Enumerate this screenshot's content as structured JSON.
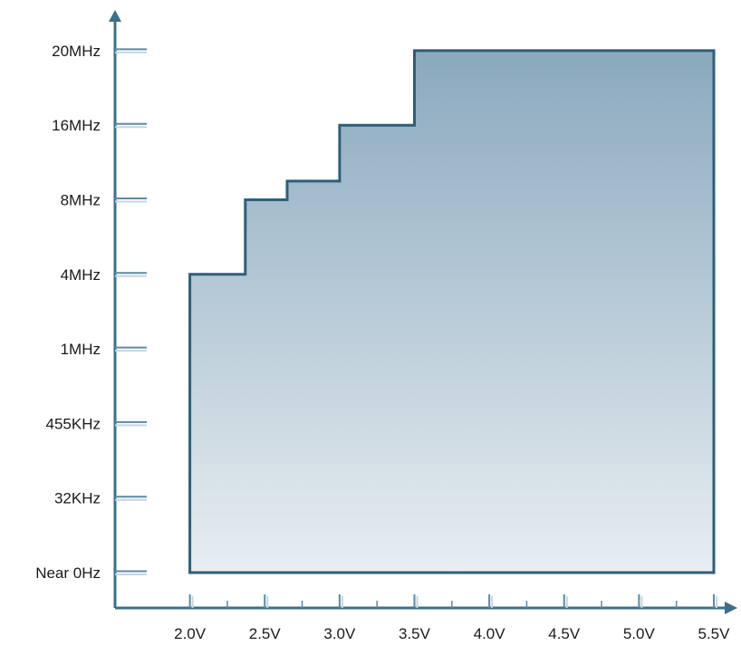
{
  "chart_data": {
    "type": "area",
    "title": "",
    "xlabel": "",
    "ylabel": "",
    "x_ticks": [
      "2.0V",
      "2.5V",
      "3.0V",
      "3.5V",
      "4.0V",
      "4.5V",
      "5.0V",
      "5.5V"
    ],
    "y_ticks": [
      "Near 0Hz",
      "32KHz",
      "455KHz",
      "1MHz",
      "4MHz",
      "8MHz",
      "16MHz",
      "20MHz"
    ],
    "x_scale": "linear",
    "y_scale": "categorical",
    "xlim": [
      1.5,
      5.5
    ],
    "grid": false,
    "legend": "none",
    "colors": {
      "fill_top": "#8aa9be",
      "fill_bottom": "#e8eef2",
      "outline": "#2e5f7a",
      "axis": "#3d6e8a",
      "tick": "#5b8aa6"
    },
    "series": [
      {
        "step_outline": [
          {
            "v": 2.0,
            "f": 0.0
          },
          {
            "v": 2.0,
            "f": 4.0
          },
          {
            "v": 2.37,
            "f": 4.0
          },
          {
            "v": 2.37,
            "f": 5.0
          },
          {
            "v": 2.65,
            "f": 5.0
          },
          {
            "v": 2.65,
            "f": 5.25
          },
          {
            "v": 3.0,
            "f": 5.25
          },
          {
            "v": 3.0,
            "f": 6.0
          },
          {
            "v": 3.5,
            "f": 6.0
          },
          {
            "v": 3.5,
            "f": 7.0
          },
          {
            "v": 5.5,
            "f": 7.0
          },
          {
            "v": 5.5,
            "f": 0.0
          }
        ]
      }
    ]
  }
}
